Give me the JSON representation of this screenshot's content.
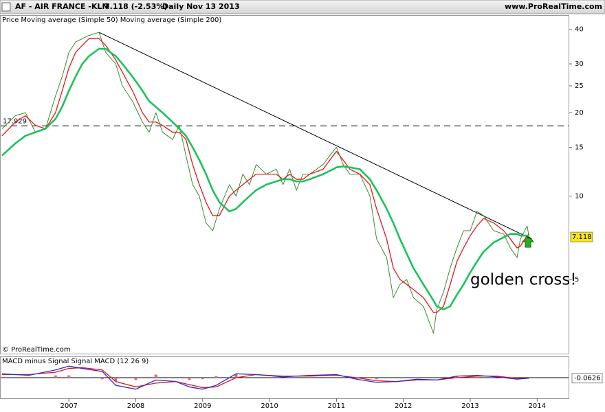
{
  "chart_data": [
    {
      "type": "line",
      "title": "AF - AIR FRANCE -KLM",
      "subtitle": "7.118 (-2.53%)",
      "period": "Daily  Nov 13 2013",
      "source": "www.ProRealTime.com",
      "copyright": "© ProRealTime.com",
      "annotation": "golden cross!",
      "log_scale": true,
      "xlim": [
        2005.97,
        2014.48
      ],
      "xticks": [
        2007,
        2008,
        2009,
        2010,
        2011,
        2012,
        2013,
        2014
      ],
      "ylim": [
        2.7,
        45
      ],
      "yticks": [
        5,
        10,
        15,
        20,
        25,
        30,
        40
      ],
      "hline": 17.929,
      "trendline": {
        "x": [
          2007.45,
          2013.92
        ],
        "values": [
          39,
          7.0
        ]
      },
      "x": [
        2006.0,
        2006.2,
        2006.35,
        2006.5,
        2006.65,
        2006.8,
        2006.9,
        2007.0,
        2007.1,
        2007.2,
        2007.3,
        2007.45,
        2007.55,
        2007.7,
        2007.8,
        2007.95,
        2008.1,
        2008.2,
        2008.3,
        2008.4,
        2008.55,
        2008.65,
        2008.75,
        2008.85,
        2008.95,
        2009.05,
        2009.15,
        2009.25,
        2009.4,
        2009.5,
        2009.6,
        2009.7,
        2009.8,
        2009.95,
        2010.1,
        2010.2,
        2010.3,
        2010.4,
        2010.5,
        2010.6,
        2010.8,
        2010.95,
        2011.0,
        2011.1,
        2011.2,
        2011.35,
        2011.5,
        2011.6,
        2011.75,
        2011.85,
        2011.95,
        2012.05,
        2012.15,
        2012.3,
        2012.45,
        2012.5,
        2012.6,
        2012.7,
        2012.8,
        2012.9,
        2013.0,
        2013.1,
        2013.2,
        2013.35,
        2013.5,
        2013.6,
        2013.7,
        2013.75,
        2013.85,
        2013.88
      ],
      "series": [
        {
          "name": "Price",
          "color": "#3a8a2a",
          "width": 1,
          "values": [
            17.5,
            19.5,
            20,
            17,
            17.5,
            23,
            27,
            33,
            36,
            37,
            38,
            39,
            33,
            30,
            25,
            22,
            18.5,
            17,
            20,
            17,
            16,
            18,
            14,
            11,
            10,
            8,
            7.5,
            9,
            11,
            10,
            12,
            11,
            13,
            12,
            12.5,
            11,
            12.5,
            10.5,
            12,
            12,
            13,
            14.5,
            15,
            13,
            12,
            12,
            10,
            7,
            6,
            4.3,
            4.8,
            5,
            4.3,
            4,
            3.2,
            3.9,
            4.5,
            5.5,
            6.5,
            7.5,
            7.5,
            8.8,
            8.5,
            7.5,
            7.3,
            6.5,
            6,
            7,
            7.8,
            7.118
          ]
        },
        {
          "name": "Moving average (Simple 50)",
          "color": "#e8141c",
          "width": 1.3,
          "values": [
            16.5,
            18.5,
            19.5,
            18,
            17.5,
            20,
            24,
            29,
            33,
            35,
            37,
            37,
            35,
            31,
            28,
            24,
            20,
            18.5,
            18.5,
            18,
            17,
            17,
            16,
            13,
            11,
            9.5,
            8.5,
            8.5,
            10,
            10.5,
            11,
            11.5,
            12,
            12,
            12,
            11.5,
            12,
            11.5,
            11.5,
            12,
            12.5,
            14,
            14.5,
            13.5,
            12.5,
            12,
            11,
            9,
            7,
            5.5,
            5,
            4.8,
            4.6,
            4.3,
            3.8,
            3.8,
            4.0,
            4.8,
            5.8,
            6.5,
            7.2,
            7.8,
            8.3,
            8.0,
            7.5,
            7.0,
            6.5,
            6.6,
            7.2,
            7.3
          ]
        },
        {
          "name": "Moving average (Simple 200)",
          "color": "#19c35a",
          "width": 2.6,
          "values": [
            14,
            15.5,
            16.5,
            17,
            17.5,
            19,
            21,
            24,
            27,
            30,
            32,
            34,
            34,
            32,
            30,
            27,
            24,
            22,
            21,
            20,
            18.5,
            17.5,
            16.5,
            15,
            13.5,
            12,
            10.5,
            9.5,
            8.8,
            9,
            9.5,
            10,
            10.5,
            11,
            11.3,
            11.5,
            11.5,
            11.3,
            11.3,
            11.5,
            12,
            12.5,
            12.7,
            12.8,
            12.7,
            12.5,
            11.5,
            10.5,
            9,
            8,
            7,
            6.2,
            5.5,
            4.8,
            4.2,
            4.0,
            3.9,
            4.0,
            4.4,
            4.8,
            5.3,
            5.8,
            6.3,
            6.8,
            7.1,
            7.3,
            7.3,
            7.2,
            7.2,
            7.2
          ]
        }
      ]
    },
    {
      "type": "line",
      "ylim": [
        -2.5,
        2.5
      ],
      "x": [
        2006.0,
        2006.4,
        2006.8,
        2007.0,
        2007.2,
        2007.5,
        2007.7,
        2008.0,
        2008.3,
        2008.6,
        2008.8,
        2009.0,
        2009.2,
        2009.5,
        2009.8,
        2010.2,
        2010.6,
        2011.0,
        2011.3,
        2011.6,
        2011.9,
        2012.2,
        2012.5,
        2012.8,
        2013.1,
        2013.4,
        2013.7,
        2013.88
      ],
      "series": [
        {
          "name": "MACD minus Signal",
          "color": "#d87070",
          "type": "bar",
          "values": [
            0.1,
            -0.1,
            0.3,
            0.3,
            -0.1,
            -0.2,
            -0.5,
            -0.3,
            0.4,
            0.0,
            -0.3,
            -0.2,
            0.2,
            0.5,
            0.0,
            -0.1,
            0.1,
            0.1,
            -0.2,
            -0.2,
            0.0,
            0.1,
            0.0,
            0.2,
            0.1,
            -0.1,
            -0.1,
            -0.0126
          ]
        },
        {
          "name": "Signal",
          "color": "#e8141c",
          "type": "line",
          "values": [
            0.4,
            0.4,
            0.7,
            1.2,
            1.3,
            1.0,
            -0.5,
            -1.2,
            -0.7,
            -0.5,
            -0.9,
            -1.3,
            -1.2,
            0.0,
            0.4,
            0.2,
            0.2,
            0.3,
            0.0,
            -0.4,
            -0.5,
            -0.3,
            -0.3,
            0.0,
            0.2,
            0.2,
            -0.1,
            -0.05
          ]
        },
        {
          "name": "MACD (12 26 9)",
          "color": "#2a2ad0",
          "type": "line",
          "values": [
            0.5,
            0.3,
            1.0,
            1.5,
            1.2,
            0.8,
            -1.0,
            -1.5,
            -0.3,
            -0.5,
            -1.2,
            -1.5,
            -1.0,
            0.5,
            0.4,
            0.1,
            0.3,
            0.4,
            -0.2,
            -0.6,
            -0.5,
            -0.2,
            -0.3,
            0.2,
            0.3,
            0.1,
            -0.2,
            -0.0626
          ]
        }
      ]
    }
  ]
}
